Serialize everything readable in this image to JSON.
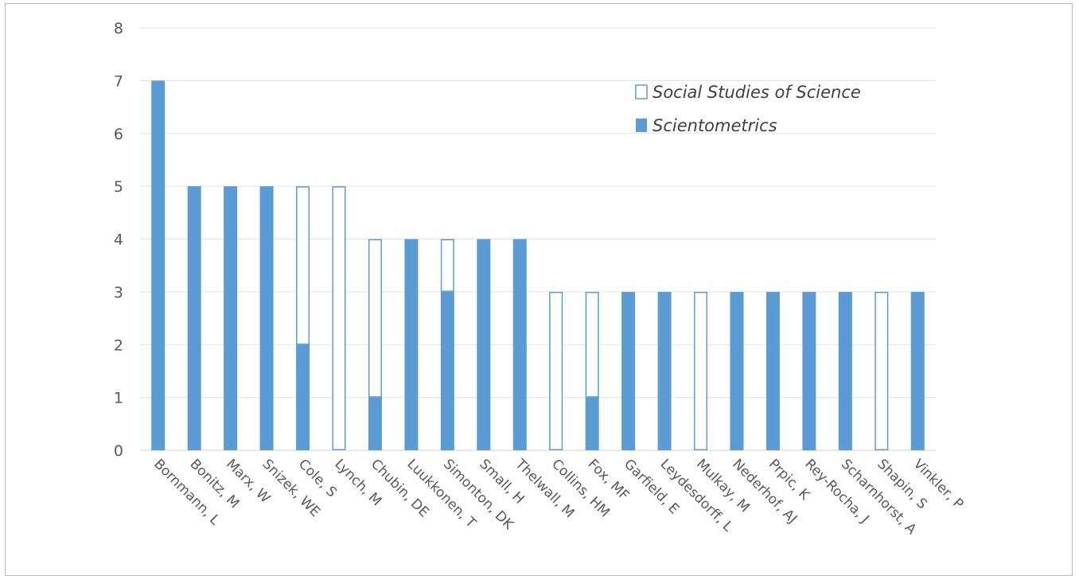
{
  "chart_data": {
    "type": "bar",
    "stacked": true,
    "categories": [
      "Bornmann, L",
      "Bonitz, M",
      "Marx, W",
      "Snizek, WE",
      "Cole, S",
      "Lynch, M",
      "Chubin, DE",
      "Luukkonen, T",
      "Simonton, DK",
      "Small, H",
      "Thelwall, M",
      "Collins, HM",
      "Fox, MF",
      "Garfield, E",
      "Leydesdorff, L",
      "Mulkay, M",
      "Nederhof, AJ",
      "Prpic, K",
      "Rey-Rocha, J",
      "Scharnhorst, A",
      "Shapin, S",
      "Vinkler, P"
    ],
    "series": [
      {
        "name": "Scientometrics",
        "color": "#5b9bd5",
        "filled": true,
        "values": [
          7,
          5,
          5,
          5,
          2,
          0,
          1,
          4,
          3,
          4,
          4,
          0,
          1,
          3,
          3,
          0,
          3,
          3,
          3,
          3,
          0,
          3
        ]
      },
      {
        "name": "Social Studies of Science",
        "color": "#5b9bd5",
        "filled": false,
        "values": [
          0,
          0,
          0,
          0,
          3,
          5,
          3,
          0,
          1,
          0,
          0,
          3,
          2,
          0,
          0,
          3,
          0,
          0,
          0,
          0,
          3,
          0
        ]
      }
    ],
    "ylim": [
      0,
      8
    ],
    "yticks": [
      0,
      1,
      2,
      3,
      4,
      5,
      6,
      7,
      8
    ],
    "grid": true,
    "legend_position": "top-right",
    "title": "",
    "xlabel": "",
    "ylabel": ""
  }
}
